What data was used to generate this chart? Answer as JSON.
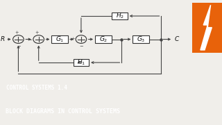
{
  "bg_diagram": "#f0eeea",
  "bg_bar1": "#e8620a",
  "bg_bar2": "#2b3540",
  "bar1_text": "CONTROL SYSTEMS 1.4",
  "bar2_text": "BLOCK DIAGRAMS IN CONTROL SYSTEMS",
  "bar1_color": "#ffffff",
  "bar2_color": "#ffffff",
  "icon_color": "#e8620a",
  "line_color": "#444444",
  "box_color": "#ffffff",
  "box_edge": "#333333",
  "text_color": "#111111",
  "diagram_bg": "#f0eeea",
  "lw": 0.8
}
